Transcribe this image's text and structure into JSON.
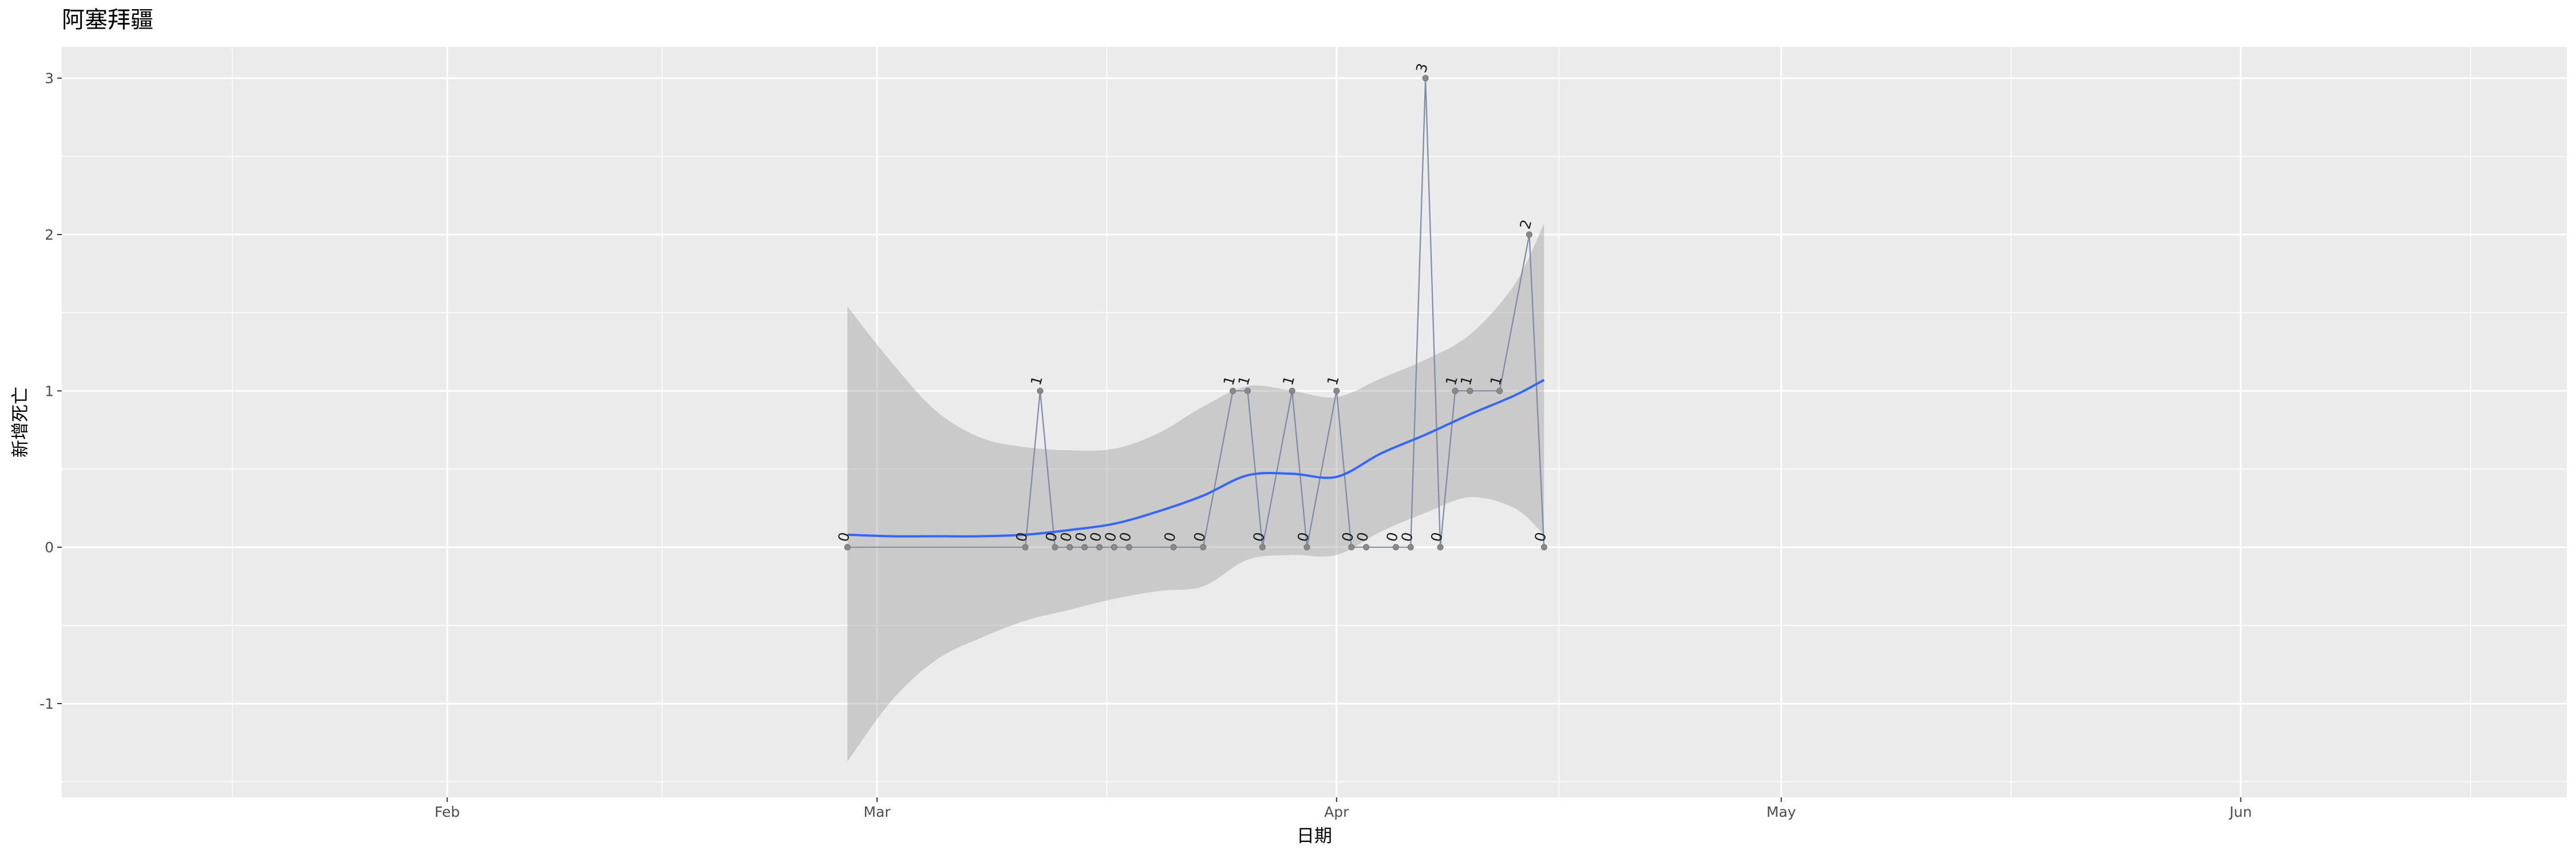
{
  "chart_data": {
    "type": "line",
    "title": "阿塞拜疆",
    "xlabel": "日期",
    "ylabel": "新增死亡",
    "xlim": [
      "2020-01-06",
      "2020-06-23"
    ],
    "ylim": [
      -1.6,
      3.2
    ],
    "x_ticks": [
      {
        "date": "2020-02-01",
        "label": "Feb"
      },
      {
        "date": "2020-03-01",
        "label": "Mar"
      },
      {
        "date": "2020-04-01",
        "label": "Apr"
      },
      {
        "date": "2020-05-01",
        "label": "May"
      },
      {
        "date": "2020-06-01",
        "label": "Jun"
      }
    ],
    "y_ticks": [
      -1,
      0,
      1,
      2,
      3
    ],
    "grid": true,
    "points": [
      {
        "date": "2020-02-28",
        "value": 0
      },
      {
        "date": "2020-03-11",
        "value": 0
      },
      {
        "date": "2020-03-12",
        "value": 1
      },
      {
        "date": "2020-03-13",
        "value": 0
      },
      {
        "date": "2020-03-14",
        "value": 0
      },
      {
        "date": "2020-03-15",
        "value": 0
      },
      {
        "date": "2020-03-16",
        "value": 0
      },
      {
        "date": "2020-03-17",
        "value": 0
      },
      {
        "date": "2020-03-18",
        "value": 0
      },
      {
        "date": "2020-03-21",
        "value": 0
      },
      {
        "date": "2020-03-23",
        "value": 0
      },
      {
        "date": "2020-03-25",
        "value": 1
      },
      {
        "date": "2020-03-26",
        "value": 1
      },
      {
        "date": "2020-03-27",
        "value": 0
      },
      {
        "date": "2020-03-29",
        "value": 1
      },
      {
        "date": "2020-03-30",
        "value": 0
      },
      {
        "date": "2020-04-01",
        "value": 1
      },
      {
        "date": "2020-04-02",
        "value": 0
      },
      {
        "date": "2020-04-03",
        "value": 0
      },
      {
        "date": "2020-04-05",
        "value": 0
      },
      {
        "date": "2020-04-06",
        "value": 0
      },
      {
        "date": "2020-04-07",
        "value": 3
      },
      {
        "date": "2020-04-08",
        "value": 0
      },
      {
        "date": "2020-04-09",
        "value": 1
      },
      {
        "date": "2020-04-10",
        "value": 1
      },
      {
        "date": "2020-04-12",
        "value": 1
      },
      {
        "date": "2020-04-14",
        "value": 2
      },
      {
        "date": "2020-04-15",
        "value": 0
      }
    ],
    "trend": {
      "method": "loess",
      "band": "confidence interval",
      "line_color": "#3366ff",
      "band_color": "#999999",
      "fit": [
        {
          "date": "2020-02-28",
          "value": 0.08,
          "lower": -1.37,
          "upper": 1.54
        },
        {
          "date": "2020-03-02",
          "value": 0.07,
          "lower": -0.98,
          "upper": 1.18
        },
        {
          "date": "2020-03-05",
          "value": 0.07,
          "lower": -0.72,
          "upper": 0.87
        },
        {
          "date": "2020-03-08",
          "value": 0.07,
          "lower": -0.58,
          "upper": 0.7
        },
        {
          "date": "2020-03-11",
          "value": 0.08,
          "lower": -0.47,
          "upper": 0.64
        },
        {
          "date": "2020-03-14",
          "value": 0.11,
          "lower": -0.4,
          "upper": 0.62
        },
        {
          "date": "2020-03-17",
          "value": 0.15,
          "lower": -0.33,
          "upper": 0.63
        },
        {
          "date": "2020-03-20",
          "value": 0.23,
          "lower": -0.28,
          "upper": 0.73
        },
        {
          "date": "2020-03-23",
          "value": 0.33,
          "lower": -0.25,
          "upper": 0.9
        },
        {
          "date": "2020-03-26",
          "value": 0.46,
          "lower": -0.08,
          "upper": 1.03
        },
        {
          "date": "2020-03-29",
          "value": 0.47,
          "lower": -0.05,
          "upper": 1.0
        },
        {
          "date": "2020-04-01",
          "value": 0.45,
          "lower": -0.05,
          "upper": 0.96
        },
        {
          "date": "2020-04-04",
          "value": 0.6,
          "lower": 0.1,
          "upper": 1.08
        },
        {
          "date": "2020-04-07",
          "value": 0.72,
          "lower": 0.22,
          "upper": 1.2
        },
        {
          "date": "2020-04-10",
          "value": 0.85,
          "lower": 0.32,
          "upper": 1.36
        },
        {
          "date": "2020-04-13",
          "value": 0.97,
          "lower": 0.25,
          "upper": 1.68
        },
        {
          "date": "2020-04-15",
          "value": 1.07,
          "lower": 0.08,
          "upper": 2.07
        }
      ]
    },
    "colors": {
      "panel_background": "#ebebeb",
      "grid_line": "#ffffff",
      "series_line": "#7f8ba3",
      "point_fill": "#8a8a8a"
    }
  }
}
